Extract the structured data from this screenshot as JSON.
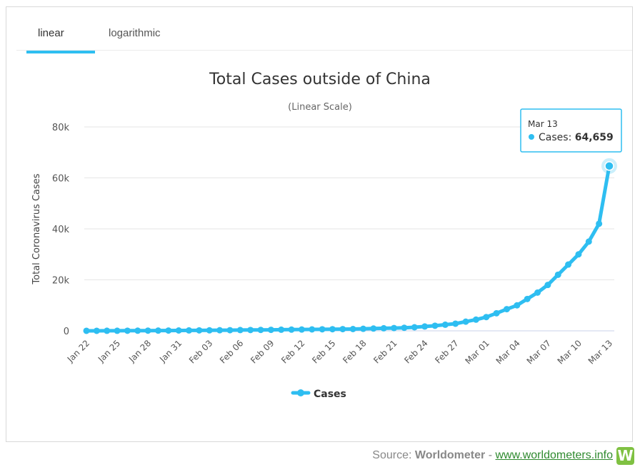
{
  "tabs": [
    {
      "label": "linear",
      "active": true
    },
    {
      "label": "logarithmic",
      "active": false
    }
  ],
  "accent_color": "#2ebef1",
  "tooltip": {
    "date": "Mar 13",
    "series": "Cases",
    "value": "64,659"
  },
  "footer": {
    "prefix": "Source:",
    "source": "Worldometer",
    "sep": "-",
    "link": "www.worldometers.info",
    "logo_letter": "W"
  },
  "chart_data": {
    "type": "line",
    "title": "Total Cases outside of China",
    "subtitle": "(Linear Scale)",
    "xlabel": "",
    "ylabel": "Total Coronavirus Cases",
    "ylim": [
      0,
      80000
    ],
    "yticks": [
      0,
      20000,
      40000,
      60000,
      80000
    ],
    "ytick_labels": [
      "0",
      "20k",
      "40k",
      "60k",
      "80k"
    ],
    "xtick_labels": [
      "Jan 22",
      "Jan 25",
      "Jan 28",
      "Jan 31",
      "Feb 03",
      "Feb 06",
      "Feb 09",
      "Feb 12",
      "Feb 15",
      "Feb 18",
      "Feb 21",
      "Feb 24",
      "Feb 27",
      "Mar 01",
      "Mar 04",
      "Mar 07",
      "Mar 10",
      "Mar 13"
    ],
    "grid": true,
    "legend": "bottom-center",
    "categories": [
      "Jan 22",
      "Jan 23",
      "Jan 24",
      "Jan 25",
      "Jan 26",
      "Jan 27",
      "Jan 28",
      "Jan 29",
      "Jan 30",
      "Jan 31",
      "Feb 01",
      "Feb 02",
      "Feb 03",
      "Feb 04",
      "Feb 05",
      "Feb 06",
      "Feb 07",
      "Feb 08",
      "Feb 09",
      "Feb 10",
      "Feb 11",
      "Feb 12",
      "Feb 13",
      "Feb 14",
      "Feb 15",
      "Feb 16",
      "Feb 17",
      "Feb 18",
      "Feb 19",
      "Feb 20",
      "Feb 21",
      "Feb 22",
      "Feb 23",
      "Feb 24",
      "Feb 25",
      "Feb 26",
      "Feb 27",
      "Feb 28",
      "Feb 29",
      "Mar 01",
      "Mar 02",
      "Mar 03",
      "Mar 04",
      "Mar 05",
      "Mar 06",
      "Mar 07",
      "Mar 08",
      "Mar 09",
      "Mar 10",
      "Mar 11",
      "Mar 12",
      "Mar 13"
    ],
    "series": [
      {
        "name": "Cases",
        "color": "#2ebef1",
        "values": [
          7,
          12,
          20,
          30,
          50,
          60,
          80,
          100,
          120,
          140,
          160,
          180,
          200,
          240,
          260,
          300,
          330,
          360,
          400,
          440,
          480,
          520,
          560,
          600,
          640,
          680,
          700,
          800,
          900,
          1000,
          1100,
          1200,
          1400,
          1700,
          2000,
          2400,
          2800,
          3600,
          4400,
          5400,
          6900,
          8500,
          10000,
          12500,
          15000,
          18000,
          22000,
          26000,
          30000,
          35000,
          42000,
          64659
        ]
      }
    ]
  }
}
